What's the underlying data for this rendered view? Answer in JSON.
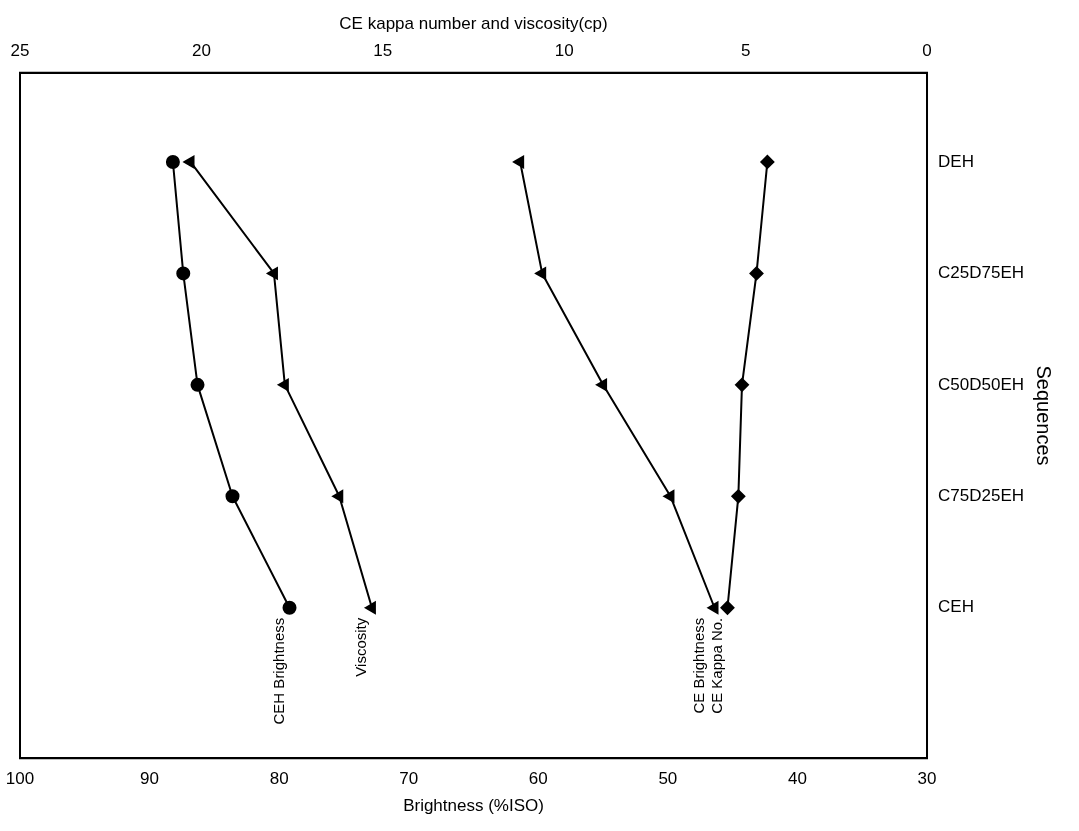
{
  "chart_data": {
    "type": "line",
    "orientation": "horizontal",
    "categories": [
      "DEH",
      "C25D75EH",
      "C50D50EH",
      "C75D25EH",
      "CEH"
    ],
    "xlabel": "Brightness (%ISO)",
    "x2label": "CE kappa number and viscosity(cp)",
    "ylabel": "Sequences",
    "xlim": [
      100,
      30
    ],
    "xticks": [
      100,
      90,
      80,
      70,
      60,
      50,
      40,
      30
    ],
    "x2lim": [
      25,
      0
    ],
    "x2ticks": [
      25,
      20,
      15,
      10,
      5,
      0
    ],
    "grid": false,
    "legend": false,
    "line_style": "solid",
    "series": [
      {
        "name": "CEH Brightness",
        "color": "#000000",
        "marker": "circle",
        "values": [
          88.2,
          87.4,
          86.3,
          83.6,
          79.2
        ]
      },
      {
        "name": "Viscosity",
        "color": "#000000",
        "marker": "triangle",
        "axis": "x2",
        "values": [
          20.3,
          18.0,
          17.7,
          16.2,
          15.3
        ]
      },
      {
        "name": "CE Brightness",
        "color": "#000000",
        "marker": "triangle",
        "values": [
          61.4,
          59.7,
          55.0,
          49.8,
          46.4
        ]
      },
      {
        "name": "CE Kappa No.",
        "color": "#000000",
        "marker": "diamond",
        "axis": "x2",
        "values": [
          4.4,
          4.7,
          5.1,
          5.2,
          5.5
        ]
      }
    ]
  }
}
